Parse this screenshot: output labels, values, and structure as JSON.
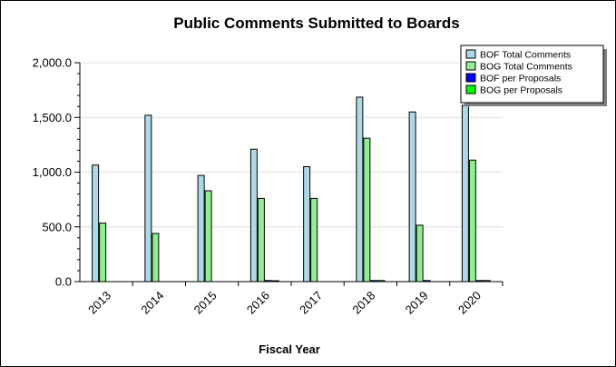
{
  "chart_data": {
    "type": "bar",
    "title": "Public Comments Submitted to Boards",
    "xlabel": "Fiscal Year",
    "ylabel": "",
    "ylim": [
      0,
      2000
    ],
    "yticks": [
      "0.0",
      "500.0",
      "1,000.0",
      "1,500.0",
      "2,000.0"
    ],
    "ytick_values": [
      0,
      500,
      1000,
      1500,
      2000
    ],
    "grid": true,
    "legend_position": "top-right",
    "categories": [
      "2013",
      "2014",
      "2015",
      "2016",
      "2017",
      "2018",
      "2019",
      "2020"
    ],
    "series": [
      {
        "name": "BOF Total Comments",
        "color": "#ADD8E6",
        "values": [
          1065,
          1520,
          970,
          1210,
          1050,
          1685,
          1550,
          1610
        ]
      },
      {
        "name": "BOG Total Comments",
        "color": "#90EE90",
        "values": [
          535,
          440,
          830,
          760,
          760,
          1310,
          515,
          1110
        ]
      },
      {
        "name": "BOF per Proposals",
        "color": "#0000FF",
        "values": [
          0,
          0,
          0,
          10,
          0,
          10,
          10,
          10
        ]
      },
      {
        "name": "BOG per Proposals",
        "color": "#00FF00",
        "values": [
          0,
          0,
          0,
          8,
          0,
          10,
          0,
          10
        ]
      }
    ]
  }
}
